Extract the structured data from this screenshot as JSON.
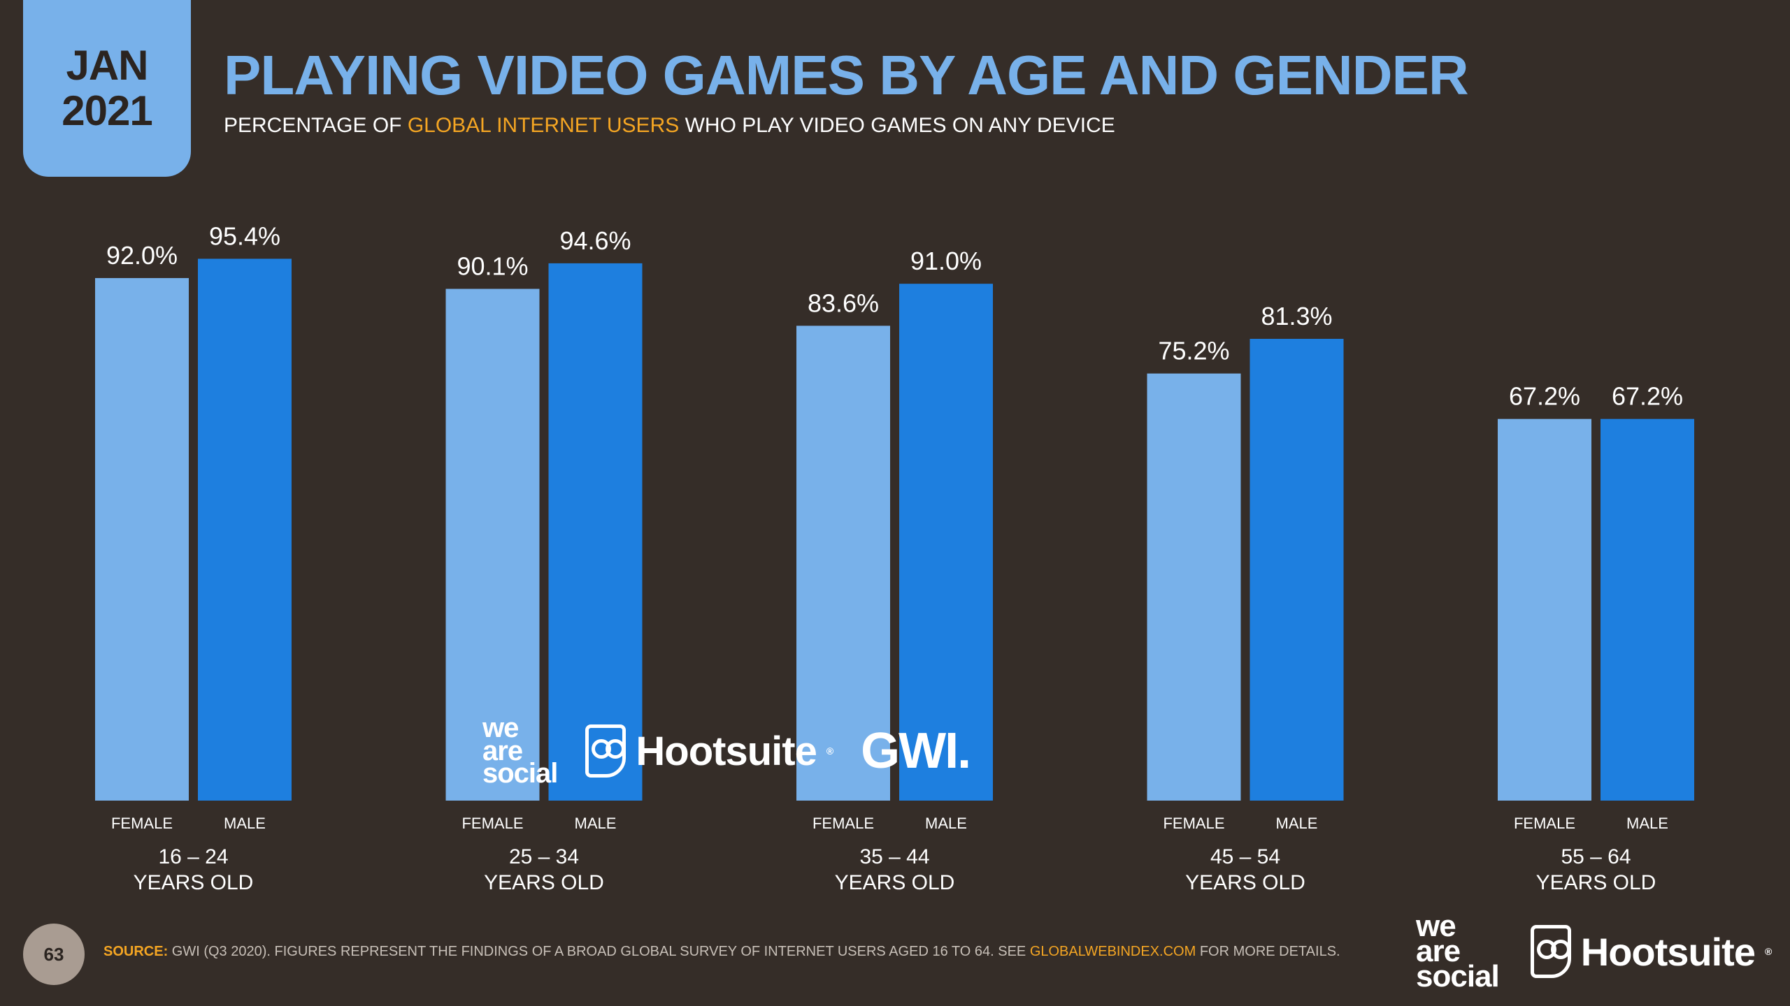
{
  "header": {
    "month": "JAN",
    "year": "2021",
    "title": "PLAYING VIDEO GAMES BY AGE AND GENDER",
    "subtitle_pre": "PERCENTAGE OF ",
    "subtitle_highlight": "GLOBAL INTERNET USERS",
    "subtitle_post": " WHO PLAY VIDEO GAMES ON ANY DEVICE"
  },
  "colors": {
    "female": "#78b1ea",
    "male": "#1e7fdf",
    "accent": "#f5a623",
    "background": "#352d28"
  },
  "chart_data": {
    "type": "bar",
    "categories": [
      "16 – 24",
      "25 – 34",
      "35 – 44",
      "45 – 54",
      "55 – 64"
    ],
    "category_suffix": "YEARS OLD",
    "series": [
      {
        "name": "FEMALE",
        "values": [
          92.0,
          90.1,
          83.6,
          75.2,
          67.2
        ]
      },
      {
        "name": "MALE",
        "values": [
          95.4,
          94.6,
          91.0,
          81.3,
          67.2
        ]
      }
    ],
    "value_format": "%",
    "ylim": [
      0,
      100
    ],
    "grid": false
  },
  "watermark": {
    "agency_line1": "we",
    "agency_line2": "are",
    "agency_line3": "social",
    "platform": "Hootsuite",
    "registered": "®",
    "partner": "GWI."
  },
  "footer": {
    "page_number": "63",
    "source_label": "SOURCE:",
    "source_text": " GWI (Q3 2020). FIGURES REPRESENT THE FINDINGS OF A BROAD GLOBAL SURVEY OF INTERNET USERS AGED 16 TO 64. SEE ",
    "source_url": "GLOBALWEBINDEX.COM",
    "source_tail": " FOR MORE DETAILS."
  }
}
